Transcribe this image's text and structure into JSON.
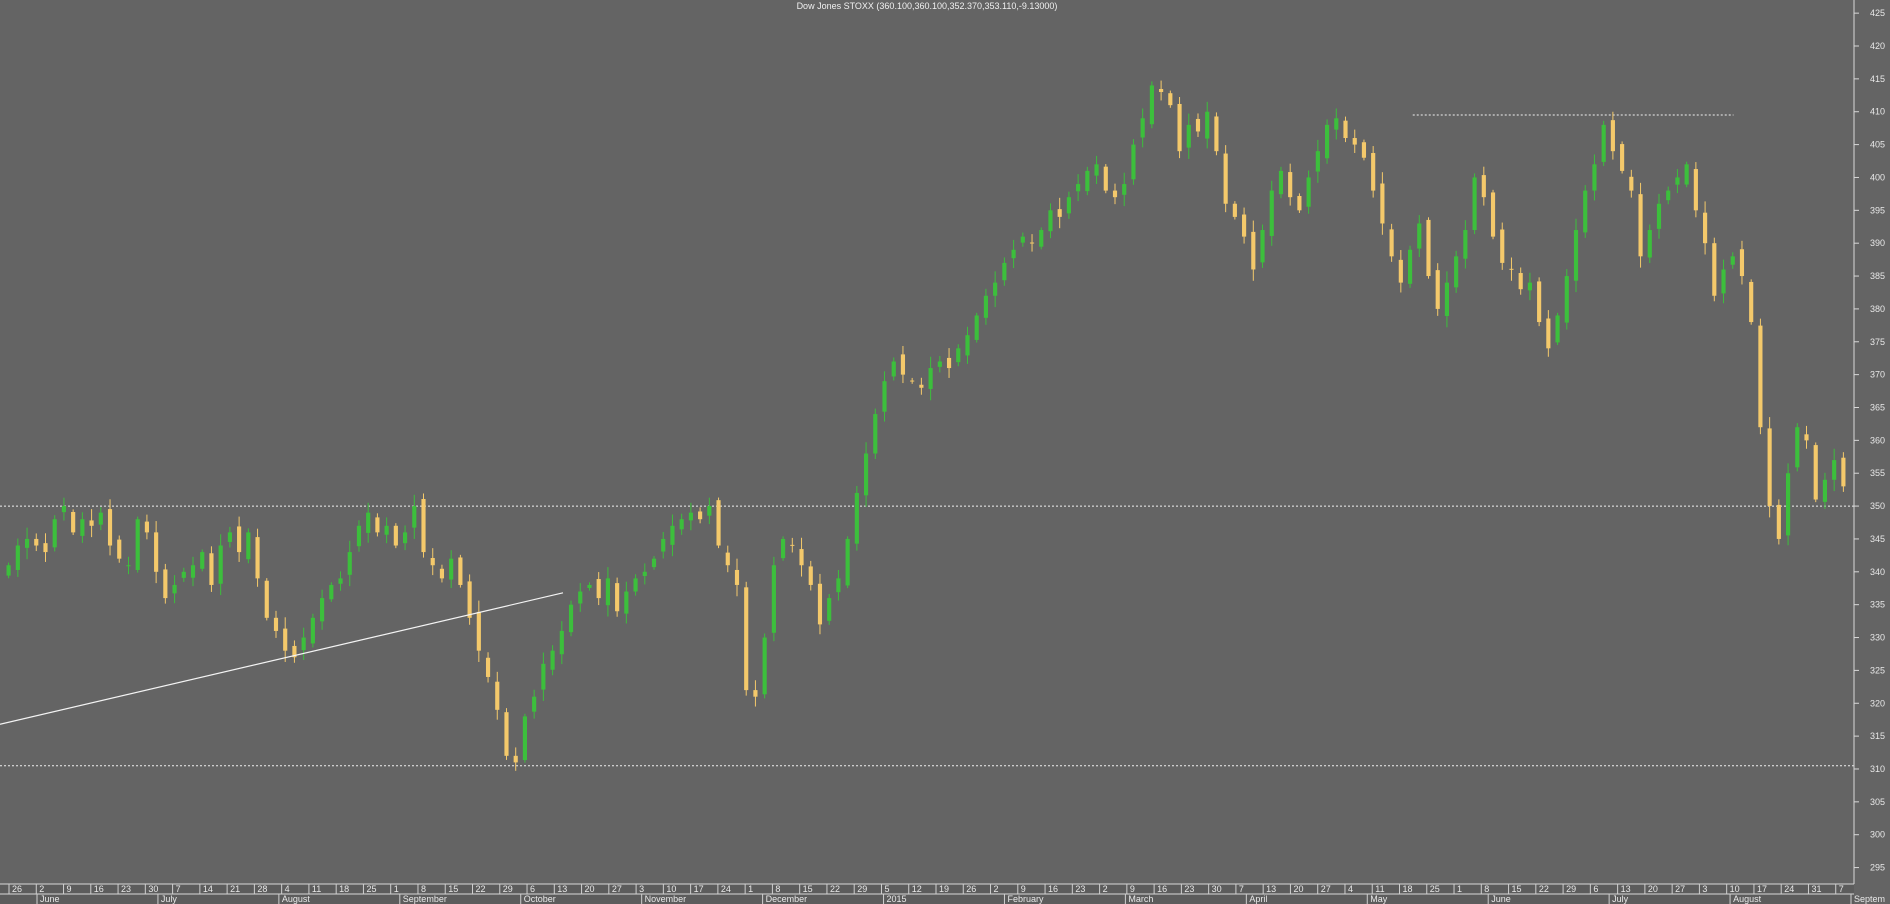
{
  "chart_data": {
    "type": "candlestick",
    "title": "Dow Jones STOXX (360.100,360.100,352.370,353.110,-9.13000)",
    "y_ticks": [
      295,
      300,
      305,
      310,
      315,
      320,
      325,
      330,
      335,
      340,
      345,
      350,
      355,
      360,
      365,
      370,
      375,
      380,
      385,
      390,
      395,
      400,
      405,
      410,
      415,
      420,
      425
    ],
    "ylim": [
      292.5,
      427
    ],
    "day_labels": [
      "26",
      "2",
      "9",
      "16",
      "23",
      "30",
      "7",
      "14",
      "21",
      "28",
      "4",
      "11",
      "18",
      "25",
      "1",
      "8",
      "15",
      "22",
      "29",
      "6",
      "13",
      "20",
      "27",
      "3",
      "10",
      "17",
      "24",
      "1",
      "8",
      "15",
      "22",
      "29",
      "5",
      "12",
      "19",
      "26",
      "2",
      "9",
      "16",
      "23",
      "2",
      "9",
      "16",
      "23",
      "30",
      "7",
      "13",
      "20",
      "27",
      "4",
      "11",
      "18",
      "25",
      "1",
      "8",
      "15",
      "22",
      "29",
      "6",
      "13",
      "20",
      "27",
      "3",
      "10",
      "17",
      "24",
      "31",
      "7"
    ],
    "month_labels": [
      "June",
      "July",
      "August",
      "September",
      "October",
      "November",
      "December",
      "2015",
      "February",
      "March",
      "April",
      "May",
      "June",
      "July",
      "August",
      "Septem"
    ],
    "horizontal_levels": [
      350,
      310.5
    ],
    "resistance_level": 409.5,
    "trendline": {
      "start": [
        0,
        316.8
      ],
      "end": [
        1.0,
        336.8
      ]
    },
    "series_colors": {
      "up": "#3cbf3c",
      "down": "#f4c96b"
    },
    "close_path": [
      341,
      344,
      345,
      344,
      343,
      348,
      350,
      346,
      348,
      347,
      349,
      344,
      342,
      341,
      348,
      346,
      340,
      336,
      338,
      340,
      341,
      343,
      338,
      344,
      346,
      343,
      346,
      339,
      333,
      331,
      328,
      327,
      330,
      333,
      336,
      338,
      339,
      343,
      347,
      349,
      346,
      347,
      344,
      346,
      350,
      343,
      341,
      339,
      342,
      338,
      333,
      328,
      324,
      319,
      312,
      311,
      318,
      321,
      326,
      328,
      331,
      335,
      337,
      338,
      336,
      339,
      334,
      337,
      339,
      340,
      342,
      345,
      347,
      348,
      349,
      348,
      350,
      344,
      341,
      338,
      322,
      321,
      330,
      341,
      345,
      344,
      341,
      338,
      332,
      336,
      339,
      345,
      352,
      358,
      364,
      369,
      372,
      370,
      369,
      368,
      371,
      372,
      371,
      374,
      376,
      379,
      382,
      384,
      387,
      389,
      391,
      390,
      392,
      395,
      394,
      397,
      399,
      401,
      402,
      398,
      397,
      399,
      405,
      409,
      414,
      413,
      411,
      404,
      408,
      407,
      410,
      404,
      396,
      394,
      391,
      386,
      392,
      398,
      401,
      397,
      395,
      400,
      404,
      408,
      409,
      406,
      405,
      403,
      398,
      393,
      388,
      384,
      389,
      393,
      385,
      380,
      384,
      388,
      392,
      400,
      397,
      391,
      387,
      386,
      383,
      384,
      378,
      374,
      379,
      385,
      392,
      398,
      402,
      408,
      404,
      401,
      398,
      388,
      392,
      396,
      398,
      400,
      402,
      395,
      390,
      382,
      386,
      388,
      385,
      378,
      362,
      350,
      345,
      355,
      362,
      360,
      351,
      354,
      357,
      353
    ]
  }
}
